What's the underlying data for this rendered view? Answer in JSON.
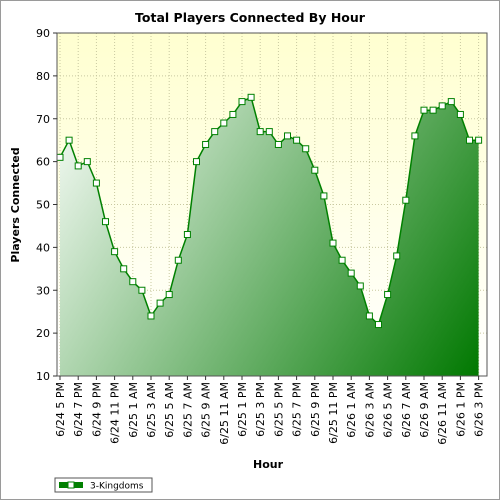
{
  "chart_data": {
    "type": "area",
    "title": "Total Players Connected By Hour",
    "xlabel": "Hour",
    "ylabel": "Players Connected",
    "ylim": [
      10,
      90
    ],
    "yticks": [
      10,
      20,
      30,
      40,
      50,
      60,
      70,
      80,
      90
    ],
    "grid": true,
    "legend": "bottom-left",
    "x_labels": [
      "6/24 5 PM",
      "6/24 7 PM",
      "6/24 9 PM",
      "6/24 11 PM",
      "6/25 1 AM",
      "6/25 3 AM",
      "6/25 5 AM",
      "6/25 7 AM",
      "6/25 9 AM",
      "6/25 11 AM",
      "6/25 1 PM",
      "6/25 3 PM",
      "6/25 5 PM",
      "6/25 7 PM",
      "6/25 9 PM",
      "6/25 11 PM",
      "6/26 1 AM",
      "6/26 3 AM",
      "6/26 5 AM",
      "6/26 7 AM",
      "6/26 9 AM",
      "6/26 11 AM",
      "6/26 1 PM",
      "6/26 3 PM"
    ],
    "series": [
      {
        "name": "3-Kingdoms",
        "color": "#008000",
        "values": [
          61,
          65,
          59,
          60,
          55,
          46,
          39,
          35,
          32,
          30,
          24,
          27,
          29,
          37,
          43,
          60,
          64,
          67,
          69,
          71,
          74,
          75,
          67,
          67,
          64,
          66,
          65,
          63,
          58,
          52,
          41,
          37,
          34,
          31,
          24,
          22,
          29,
          38,
          51,
          66,
          72,
          72,
          73,
          74,
          71,
          65,
          65
        ]
      }
    ],
    "colors": {
      "background": "#ffffff",
      "plot_background_top": "#ffffd0",
      "plot_background_bottom": "#ffffff",
      "fill_light": "#f2f9f2",
      "fill_dark": "#007800",
      "line": "#008000",
      "grid": "#c8c8a0"
    }
  }
}
